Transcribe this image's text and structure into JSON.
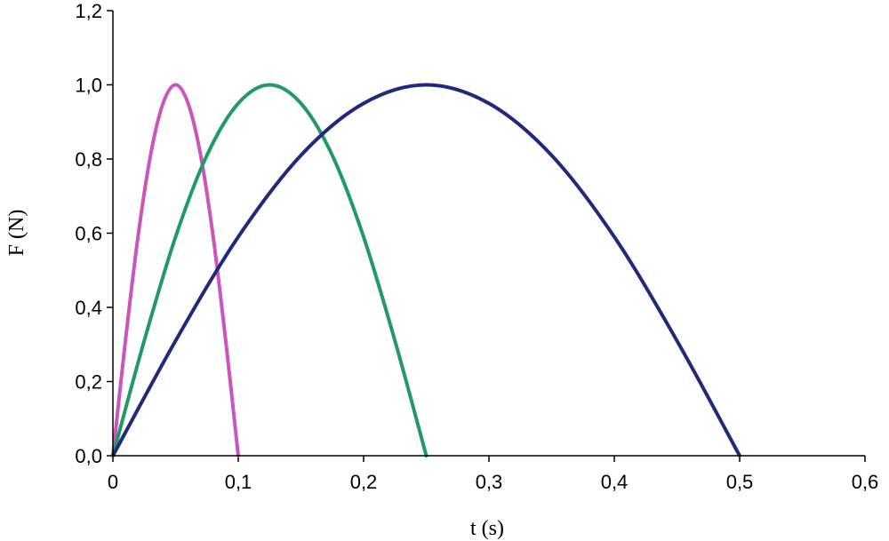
{
  "chart_data": {
    "type": "line",
    "title": "",
    "xlabel": "t (s)",
    "ylabel": "F (N)",
    "xlim": [
      0,
      0.6
    ],
    "ylim": [
      0,
      1.2
    ],
    "x_ticks": [
      "0",
      "0,1",
      "0,2",
      "0,3",
      "0,4",
      "0,5",
      "0,6"
    ],
    "y_ticks": [
      "0,0",
      "0,2",
      "0,4",
      "0,6",
      "0,8",
      "1,0",
      "1,2"
    ],
    "grid": false,
    "series": [
      {
        "color": "#cc55bb",
        "x": [
          0,
          0.01,
          0.02,
          0.03,
          0.04,
          0.05,
          0.06,
          0.07,
          0.08,
          0.09,
          0.1
        ],
        "y": [
          0,
          0.31,
          0.59,
          0.81,
          0.95,
          1.0,
          0.95,
          0.81,
          0.59,
          0.31,
          0
        ]
      },
      {
        "color": "#229966",
        "x": [
          0,
          0.025,
          0.05,
          0.075,
          0.1,
          0.125,
          0.15,
          0.175,
          0.2,
          0.225,
          0.25
        ],
        "y": [
          0,
          0.31,
          0.59,
          0.81,
          0.95,
          1.0,
          0.95,
          0.81,
          0.59,
          0.31,
          0
        ]
      },
      {
        "color": "#1f2a7a",
        "x": [
          0,
          0.05,
          0.1,
          0.15,
          0.2,
          0.25,
          0.3,
          0.35,
          0.4,
          0.45,
          0.5
        ],
        "y": [
          0,
          0.31,
          0.59,
          0.81,
          0.95,
          1.0,
          0.95,
          0.81,
          0.59,
          0.31,
          0
        ]
      }
    ]
  }
}
